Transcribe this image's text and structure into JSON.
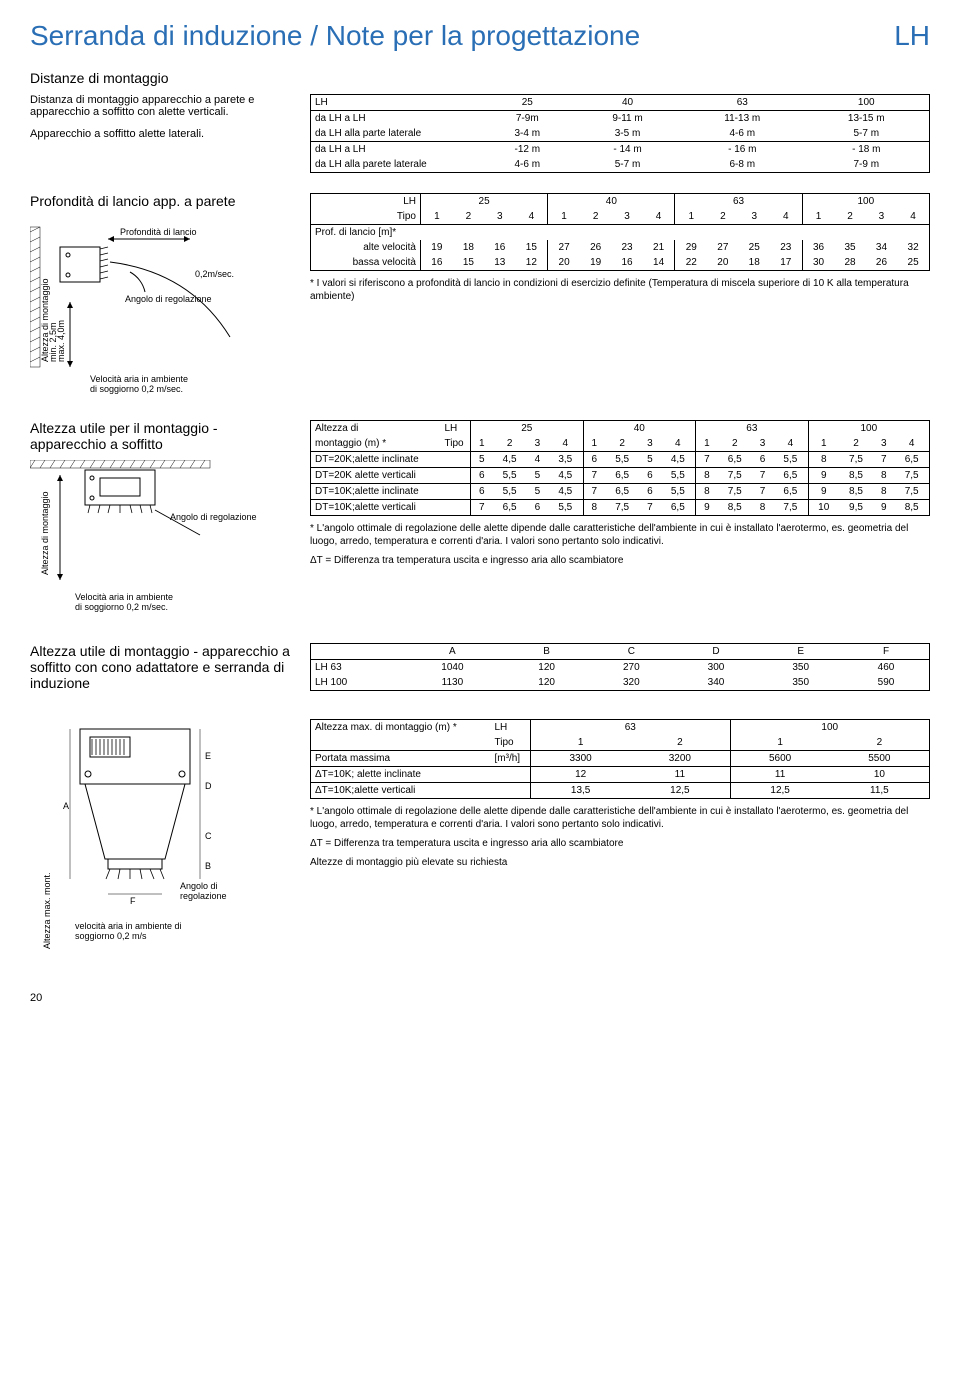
{
  "page": {
    "title": "Serranda di induzione / Note per la progettazione",
    "title_lh": "LH",
    "number": "20"
  },
  "colors": {
    "title": "#2a6fb5",
    "text": "#000000",
    "border": "#000000",
    "bg": "#ffffff"
  },
  "sec1": {
    "heading": "Distanze di montaggio",
    "text1": "Distanza di montaggio apparecchio a parete e apparecchio a soffitto con alette verticali.",
    "text2": "Apparecchio a soffitto alette laterali.",
    "table": {
      "header": [
        "LH",
        "25",
        "40",
        "63",
        "100"
      ],
      "rows": [
        [
          "da LH a LH",
          "7-9m",
          "9-11 m",
          "11-13 m",
          "13-15 m"
        ],
        [
          "da LH alla parte laterale",
          "3-4 m",
          "3-5 m",
          "4-6 m",
          "5-7 m"
        ],
        [
          "da LH a LH",
          "-12 m",
          "- 14 m",
          "- 16 m",
          "- 18 m"
        ],
        [
          "da LH alla parete laterale",
          "4-6 m",
          "5-7 m",
          "6-8 m",
          "7-9 m"
        ]
      ]
    }
  },
  "sec2": {
    "heading": "Profondità di lancio app. a parete",
    "diagram": {
      "l1": "Profondità di lancio",
      "l2": "0,2m/sec.",
      "l3": "Angolo di regolazione",
      "l4": "Velocità aria in ambiente di soggiorno 0,2 m/sec.",
      "l5": "Altezza di montaggio",
      "l6": "min. 2,5m",
      "l7": "max. 4,0m"
    },
    "table": {
      "header1": [
        "LH",
        "25",
        "40",
        "63",
        "100"
      ],
      "header2": [
        "Tipo",
        "1",
        "2",
        "3",
        "4",
        "1",
        "2",
        "3",
        "4",
        "1",
        "2",
        "3",
        "4",
        "1",
        "2",
        "3",
        "4"
      ],
      "rowhead": "Prof. di lancio [m]*",
      "r1": [
        "alte velocità",
        "19",
        "18",
        "16",
        "15",
        "27",
        "26",
        "23",
        "21",
        "29",
        "27",
        "25",
        "23",
        "36",
        "35",
        "34",
        "32"
      ],
      "r2": [
        "bassa velocità",
        "16",
        "15",
        "13",
        "12",
        "20",
        "19",
        "16",
        "14",
        "22",
        "20",
        "18",
        "17",
        "30",
        "28",
        "26",
        "25"
      ]
    },
    "note": "* I valori si riferiscono a profondità di lancio in condizioni di esercizio definite (Temperatura di miscela superiore di 10 K alla temperatura ambiente)"
  },
  "sec3": {
    "heading": "Altezza utile per il montaggio - apparecchio a soffitto",
    "diagram": {
      "l1": "Angolo di regolazione",
      "l2": "Velocità aria in ambiente di soggiorno 0,2 m/sec.",
      "l3": "Altezza di montaggio"
    },
    "table": {
      "h1a": "Altezza di",
      "h1b": "LH",
      "h1c": [
        "25",
        "40",
        "63",
        "100"
      ],
      "h2a": "montaggio (m) *",
      "h2b": "Tipo",
      "h2c": [
        "1",
        "2",
        "3",
        "4",
        "1",
        "2",
        "3",
        "4",
        "1",
        "2",
        "3",
        "4",
        "1",
        "2",
        "3",
        "4"
      ],
      "rows": [
        [
          "DT=20K;alette inclinate",
          "5",
          "4,5",
          "4",
          "3,5",
          "6",
          "5,5",
          "5",
          "4,5",
          "7",
          "6,5",
          "6",
          "5,5",
          "8",
          "7,5",
          "7",
          "6,5"
        ],
        [
          "DT=20K alette verticali",
          "6",
          "5,5",
          "5",
          "4,5",
          "7",
          "6,5",
          "6",
          "5,5",
          "8",
          "7,5",
          "7",
          "6,5",
          "9",
          "8,5",
          "8",
          "7,5"
        ],
        [
          "DT=10K;alette inclinate",
          "6",
          "5,5",
          "5",
          "4,5",
          "7",
          "6,5",
          "6",
          "5,5",
          "8",
          "7,5",
          "7",
          "6,5",
          "9",
          "8,5",
          "8",
          "7,5"
        ],
        [
          "DT=10K;alette verticali",
          "7",
          "6,5",
          "6",
          "5,5",
          "8",
          "7,5",
          "7",
          "6,5",
          "9",
          "8,5",
          "8",
          "7,5",
          "10",
          "9,5",
          "9",
          "8,5"
        ]
      ]
    },
    "note1": "* L'angolo ottimale di regolazione delle alette dipende dalle caratteristiche dell'ambiente in cui è installato l'aerotermo, es. geometria del luogo, arredo, temperatura e correnti d'aria. I valori sono pertanto solo indicativi.",
    "note2": "ΔT = Differenza tra temperatura uscita e ingresso aria allo scambiatore"
  },
  "sec4": {
    "heading": "Altezza utile di montaggio - apparecchio a soffitto con cono adattatore e serranda di induzione",
    "diagram": {
      "l1": "Angolo di regolazione",
      "l2": "velocità aria in ambiente di soggiorno 0,2 m/s",
      "l3": "Altezza max. mont.",
      "labels": [
        "A",
        "B",
        "C",
        "D",
        "E",
        "F"
      ]
    },
    "tableA": {
      "header": [
        "",
        "A",
        "B",
        "C",
        "D",
        "E",
        "F"
      ],
      "rows": [
        [
          "LH   63",
          "1040",
          "120",
          "270",
          "300",
          "350",
          "460"
        ],
        [
          "LH   100",
          "1130",
          "120",
          "320",
          "340",
          "350",
          "590"
        ]
      ]
    },
    "tableB": {
      "h1": [
        "Altezza max. di montaggio (m) *",
        "LH",
        "63",
        "100"
      ],
      "h2": [
        "",
        "Tipo",
        "1",
        "2",
        "1",
        "2"
      ],
      "rows": [
        [
          "Portata massima",
          "[m³/h]",
          "3300",
          "3200",
          "5600",
          "5500"
        ],
        [
          "ΔT=10K; alette inclinate",
          "",
          "12",
          "11",
          "11",
          "10"
        ],
        [
          "ΔT=10K;alette verticali",
          "",
          "13,5",
          "12,5",
          "12,5",
          "11,5"
        ]
      ]
    },
    "note1": "* L'angolo ottimale di regolazione delle alette dipende dalle caratteristiche dell'ambiente in cui è installato l'aerotermo, es. geometria del luogo, arredo, temperatura e correnti d'aria. I valori sono pertanto solo indicativi.",
    "note2": "ΔT = Differenza tra temperatura uscita e ingresso aria allo scambiatore",
    "note3": "Altezze di montaggio più elevate su richiesta"
  }
}
